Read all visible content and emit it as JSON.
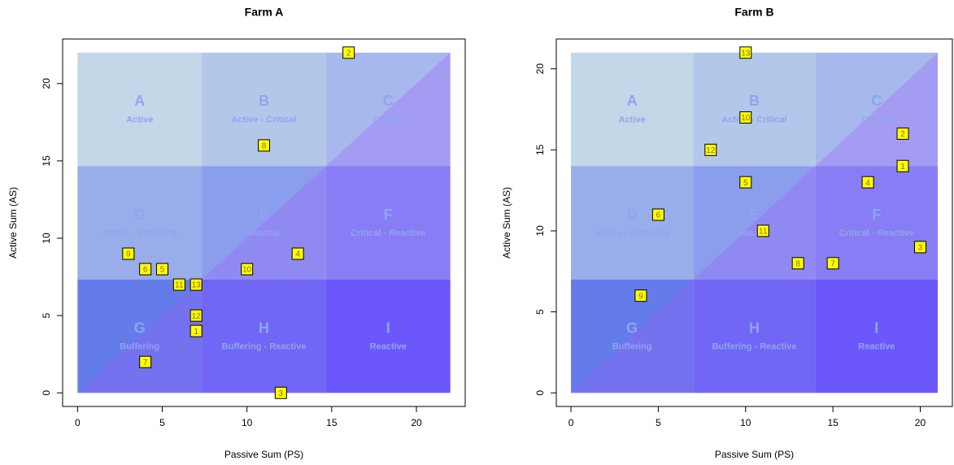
{
  "chart_data": [
    {
      "type": "scatter",
      "title": "Farm A",
      "x_label": "Passive Sum (PS)",
      "y_label": "Active Sum (AS)",
      "xlim": [
        -0.88,
        22.88
      ],
      "ylim": [
        -0.88,
        22.88
      ],
      "xticks": [
        0,
        5,
        10,
        15,
        20
      ],
      "yticks": [
        0,
        5,
        10,
        15,
        20
      ],
      "zones": [
        {
          "letter": "A",
          "name": "Active",
          "color": "#c3d7e9"
        },
        {
          "letter": "B",
          "name": "Active - Critical",
          "color": "#b3c7ea"
        },
        {
          "letter": "C",
          "name": "Critical",
          "color": "#a7b8ec"
        },
        {
          "letter": "D",
          "name": "Active - Buffering",
          "color": "#98ade9"
        },
        {
          "letter": "E",
          "name": "Neutral",
          "color": "#8b9ded"
        },
        {
          "letter": "F",
          "name": "Critical - Reactive",
          "color": "#7f8cf0"
        },
        {
          "letter": "G",
          "name": "Buffering",
          "color": "#647ce9"
        },
        {
          "letter": "H",
          "name": "Buffering - Reactive",
          "color": "#5f6af2"
        },
        {
          "letter": "I",
          "name": "Reactive",
          "color": "#5656f8"
        }
      ],
      "diagonal_color": "#a05cff",
      "point_color": "#ffff00",
      "series": [
        {
          "labels": [
            "1",
            "2",
            "3",
            "4",
            "5",
            "6",
            "7",
            "8",
            "9",
            "10",
            "11",
            "12",
            "13"
          ],
          "x": [
            7,
            16,
            12,
            13,
            5,
            4,
            4,
            11,
            3,
            10,
            6,
            7,
            7
          ],
          "values": [
            4,
            22,
            0,
            9,
            8,
            8,
            2,
            16,
            9,
            8,
            7,
            5,
            7
          ]
        }
      ]
    },
    {
      "type": "scatter",
      "title": "Farm B",
      "x_label": "Passive Sum (PS)",
      "y_label": "Active Sum (AS)",
      "xlim": [
        -0.84,
        21.84
      ],
      "ylim": [
        -0.84,
        21.84
      ],
      "xticks": [
        0,
        5,
        10,
        15,
        20
      ],
      "yticks": [
        0,
        5,
        10,
        15,
        20
      ],
      "zones": [
        {
          "letter": "A",
          "name": "Active",
          "color": "#c3d7e9"
        },
        {
          "letter": "B",
          "name": "Active - Critical",
          "color": "#b3c7ea"
        },
        {
          "letter": "C",
          "name": "Critical",
          "color": "#a7b8ec"
        },
        {
          "letter": "D",
          "name": "Active - Buffering",
          "color": "#98ade9"
        },
        {
          "letter": "E",
          "name": "Neutral",
          "color": "#8b9ded"
        },
        {
          "letter": "F",
          "name": "Critical - Reactive",
          "color": "#7f8cf0"
        },
        {
          "letter": "G",
          "name": "Buffering",
          "color": "#647ce9"
        },
        {
          "letter": "H",
          "name": "Buffering - Reactive",
          "color": "#5f6af2"
        },
        {
          "letter": "I",
          "name": "Reactive",
          "color": "#5656f8"
        }
      ],
      "diagonal_color": "#a05cff",
      "point_color": "#ffff00",
      "series": [
        {
          "labels": [
            "1",
            "2",
            "3",
            "4",
            "5",
            "6",
            "7",
            "8",
            "9",
            "10",
            "11",
            "12",
            "13"
          ],
          "x": [
            19,
            19,
            20,
            17,
            10,
            5,
            15,
            13,
            4,
            10,
            11,
            8,
            10
          ],
          "values": [
            14,
            16,
            9,
            13,
            13,
            11,
            8,
            8,
            6,
            17,
            10,
            15,
            21
          ]
        }
      ]
    }
  ]
}
